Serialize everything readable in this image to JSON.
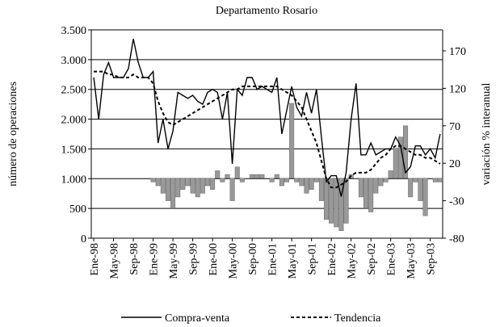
{
  "chart_data": {
    "type": "line",
    "title": "Departamento Rosario",
    "y_label": "número de operaciones",
    "y2_label": "variación % interanual",
    "categories": [
      "Ene-98",
      null,
      null,
      null,
      "May-98",
      null,
      null,
      null,
      "Sep-98",
      null,
      null,
      null,
      "Ene-99",
      null,
      null,
      null,
      "May-99",
      null,
      null,
      null,
      "Sep-99",
      null,
      null,
      null,
      "Ene-00",
      null,
      null,
      null,
      "May-00",
      null,
      null,
      null,
      "Sep-00",
      null,
      null,
      null,
      "Ene-01",
      null,
      null,
      null,
      "May-01",
      null,
      null,
      null,
      "Sep-01",
      null,
      null,
      null,
      "Ene-02",
      null,
      null,
      null,
      "May-02",
      null,
      null,
      null,
      "Sep-02",
      null,
      null,
      null,
      "Ene-03",
      null,
      null,
      null,
      "May-03",
      null,
      null,
      null,
      "Sep-03",
      null,
      null
    ],
    "ylim": [
      0,
      3500
    ],
    "yticks": [
      0,
      500,
      {
        "value": 1000,
        "label": "1.000"
      },
      {
        "value": 1500,
        "label": "1.500"
      },
      {
        "value": 2000,
        "label": "2.000"
      },
      {
        "value": 2500,
        "label": "2.500"
      },
      {
        "value": 3000,
        "label": "3.000"
      },
      {
        "value": 3500,
        "label": "3.500"
      }
    ],
    "y2lim": [
      -80,
      198
    ],
    "y2ticks": [
      -80,
      -30,
      20,
      70,
      120,
      170
    ],
    "grid": true,
    "series": [
      {
        "type": "bar",
        "axis": "y2",
        "color": "#999999",
        "values": [
          null,
          null,
          null,
          null,
          null,
          null,
          null,
          null,
          null,
          null,
          null,
          null,
          -5,
          -10,
          -20,
          -30,
          -40,
          -25,
          -15,
          -10,
          -20,
          -25,
          -20,
          -10,
          -15,
          10,
          -5,
          5,
          -30,
          15,
          -5,
          0,
          5,
          5,
          5,
          0,
          -5,
          5,
          -10,
          -5,
          100,
          -5,
          -10,
          -20,
          -15,
          -5,
          -30,
          -55,
          -60,
          -65,
          -70,
          -60,
          5,
          0,
          -25,
          -40,
          -45,
          -20,
          -10,
          -5,
          10,
          40,
          55,
          70,
          -25,
          -5,
          -30,
          -50,
          0,
          -5,
          -5
        ]
      },
      {
        "name": "Compra-venta",
        "type": "line",
        "color": "#000000",
        "dash": "solid",
        "values": [
          2700,
          2000,
          2750,
          2950,
          2700,
          2700,
          2700,
          2850,
          3350,
          2950,
          2700,
          2700,
          2800,
          1600,
          2000,
          1500,
          1800,
          2450,
          2400,
          2350,
          2400,
          2300,
          2250,
          2450,
          2500,
          2450,
          2000,
          2450,
          1250,
          2500,
          2400,
          2700,
          2700,
          2500,
          2550,
          2500,
          2450,
          2700,
          1750,
          2150,
          2550,
          2200,
          2050,
          2450,
          2100,
          2500,
          1700,
          950,
          1050,
          1050,
          700,
          1100,
          2000,
          2600,
          1400,
          1400,
          1600,
          1400,
          1450,
          1500,
          1500,
          1700,
          1550,
          1100,
          1200,
          1550,
          1550,
          1400,
          1500,
          1350,
          1750
        ]
      },
      {
        "name": "Tendencia",
        "type": "line",
        "color": "#000000",
        "dash": "dashed",
        "values": [
          2800,
          2800,
          2800,
          2750,
          2750,
          2700,
          2700,
          2700,
          2750,
          2700,
          2700,
          2700,
          2600,
          2300,
          2100,
          1950,
          1900,
          1950,
          2000,
          2050,
          2100,
          2150,
          2200,
          2250,
          2300,
          2350,
          2400,
          2450,
          2500,
          2500,
          2550,
          2550,
          2550,
          2550,
          2550,
          2550,
          2550,
          2550,
          2500,
          2450,
          2400,
          2300,
          2200,
          2000,
          1800,
          1600,
          1300,
          1000,
          850,
          850,
          900,
          950,
          1050,
          1100,
          1100,
          1100,
          1150,
          1250,
          1350,
          1400,
          1500,
          1550,
          1550,
          1500,
          1450,
          1400,
          1400,
          1350,
          1350,
          1300,
          1250
        ]
      }
    ]
  }
}
